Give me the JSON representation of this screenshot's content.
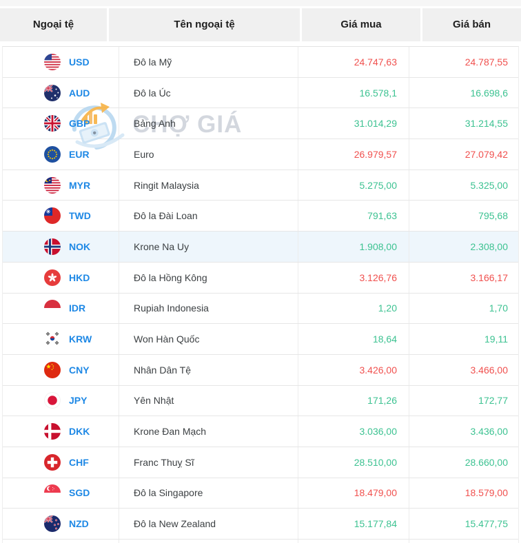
{
  "table": {
    "columns": [
      "Ngoại tệ",
      "Tên ngoại tệ",
      "Giá mua",
      "Giá bán"
    ],
    "rows": [
      {
        "code": "USD",
        "flag": "usd-flag",
        "name": "Đô la Mỹ",
        "buy": "24.747,63",
        "sell": "24.787,55",
        "color": "red",
        "highlighted": false
      },
      {
        "code": "AUD",
        "flag": "aud-flag",
        "name": "Đô la Úc",
        "buy": "16.578,1",
        "sell": "16.698,6",
        "color": "green",
        "highlighted": false
      },
      {
        "code": "GBP",
        "flag": "gbp-flag",
        "name": "Bảng Anh",
        "buy": "31.014,29",
        "sell": "31.214,55",
        "color": "green",
        "highlighted": false
      },
      {
        "code": "EUR",
        "flag": "eur-flag",
        "name": "Euro",
        "buy": "26.979,57",
        "sell": "27.079,42",
        "color": "red",
        "highlighted": false
      },
      {
        "code": "MYR",
        "flag": "myr-flag",
        "name": "Ringit Malaysia",
        "buy": "5.275,00",
        "sell": "5.325,00",
        "color": "green",
        "highlighted": false
      },
      {
        "code": "TWD",
        "flag": "twd-flag",
        "name": "Đô la Đài Loan",
        "buy": "791,63",
        "sell": "795,68",
        "color": "green",
        "highlighted": false
      },
      {
        "code": "NOK",
        "flag": "nok-flag",
        "name": "Krone Na Uy",
        "buy": "1.908,00",
        "sell": "2.308,00",
        "color": "green",
        "highlighted": true
      },
      {
        "code": "HKD",
        "flag": "hkd-flag",
        "name": "Đô la Hồng Kông",
        "buy": "3.126,76",
        "sell": "3.166,17",
        "color": "red",
        "highlighted": false
      },
      {
        "code": "IDR",
        "flag": "idr-flag",
        "name": "Rupiah Indonesia",
        "buy": "1,20",
        "sell": "1,70",
        "color": "green",
        "highlighted": false
      },
      {
        "code": "KRW",
        "flag": "krw-flag",
        "name": "Won Hàn Quốc",
        "buy": "18,64",
        "sell": "19,11",
        "color": "green",
        "highlighted": false
      },
      {
        "code": "CNY",
        "flag": "cny-flag",
        "name": "Nhân Dân Tệ",
        "buy": "3.426,00",
        "sell": "3.466,00",
        "color": "red",
        "highlighted": false
      },
      {
        "code": "JPY",
        "flag": "jpy-flag",
        "name": "Yên Nhật",
        "buy": "171,26",
        "sell": "172,77",
        "color": "green",
        "highlighted": false
      },
      {
        "code": "DKK",
        "flag": "dkk-flag",
        "name": "Krone Đan Mạch",
        "buy": "3.036,00",
        "sell": "3.436,00",
        "color": "green",
        "highlighted": false
      },
      {
        "code": "CHF",
        "flag": "chf-flag",
        "name": "Franc Thuỵ Sĩ",
        "buy": "28.510,00",
        "sell": "28.660,00",
        "color": "green",
        "highlighted": false
      },
      {
        "code": "SGD",
        "flag": "sgd-flag",
        "name": "Đô la Singapore",
        "buy": "18.479,00",
        "sell": "18.579,00",
        "color": "red",
        "highlighted": false
      },
      {
        "code": "NZD",
        "flag": "nzd-flag",
        "name": "Đô la New Zealand",
        "buy": "15.177,84",
        "sell": "15.477,75",
        "color": "green",
        "highlighted": false
      }
    ]
  },
  "colors": {
    "value_red": "#f0504e",
    "value_green": "#3cc291",
    "code_blue": "#1e88e5",
    "header_bg": "#f0f0f0",
    "highlight_row_bg": "#eef6fc"
  },
  "watermark": {
    "text": "CHỢ GIÁ"
  }
}
